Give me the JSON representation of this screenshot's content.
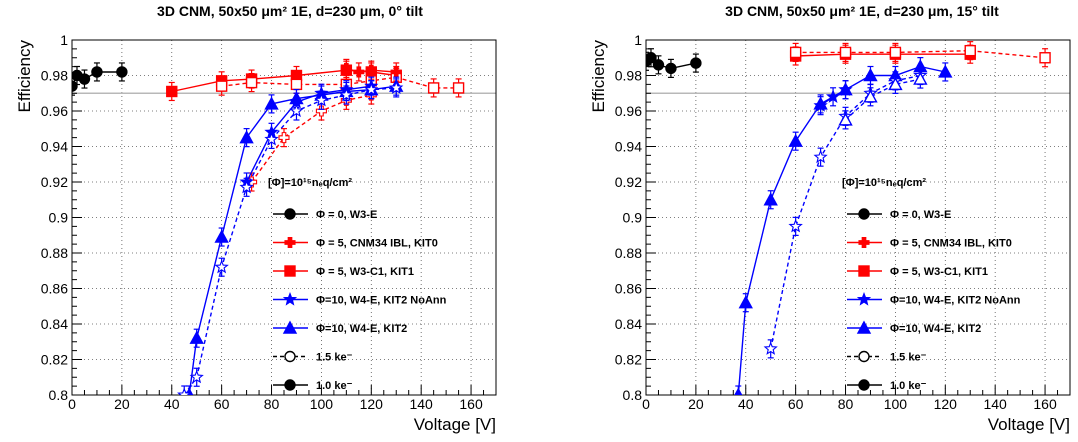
{
  "chart_data": [
    {
      "type": "line",
      "title": "3D CNM, 50x50 μm² 1E, d=230 μm, 0° tilt",
      "xlabel": "Voltage [V]",
      "ylabel": "Efficiency",
      "xlim": [
        0,
        170
      ],
      "ylim": [
        0.8,
        1.0
      ],
      "xticks": [
        "0",
        "20",
        "40",
        "60",
        "80",
        "100",
        "120",
        "140",
        "160"
      ],
      "yticks": [
        "0.8",
        "0.82",
        "0.84",
        "0.86",
        "0.88",
        "0.9",
        "0.92",
        "0.94",
        "0.96",
        "0.98",
        "1"
      ],
      "reference_line": 0.97,
      "grid": true,
      "legend_header": "[Φ]=10¹⁵nₑq/cm²",
      "legend": [
        {
          "label": "Φ = 0, W3-E",
          "color": "#000000",
          "marker": "circle"
        },
        {
          "label": "Φ = 5, CNM34 IBL, KIT0",
          "color": "#ff0000",
          "marker": "cross"
        },
        {
          "label": "Φ = 5, W3-C1, KIT1",
          "color": "#ff0000",
          "marker": "square"
        },
        {
          "label": "Φ=10, W4-E,   KIT2 NoAnn",
          "color": "#0000ff",
          "marker": "star"
        },
        {
          "label": "Φ=10, W4-E,   KIT2",
          "color": "#0000ff",
          "marker": "triangle"
        },
        {
          "label": "1.5 ke⁻",
          "color": "#000000",
          "marker": "open-circle",
          "dashed": true
        },
        {
          "label": "1.0 ke⁻",
          "color": "#000000",
          "marker": "circle"
        }
      ],
      "series": [
        {
          "color": "#000000",
          "marker": "circle",
          "dashed": false,
          "x": [
            0,
            2,
            5,
            10,
            20
          ],
          "y": [
            0.974,
            0.98,
            0.978,
            0.982,
            0.982
          ]
        },
        {
          "color": "#ff0000",
          "marker": "square",
          "dashed": false,
          "x": [
            40,
            60,
            72,
            90,
            110,
            120,
            130
          ],
          "y": [
            0.971,
            0.977,
            0.978,
            0.98,
            0.983,
            0.982,
            0.98
          ]
        },
        {
          "color": "#ff0000",
          "marker": "open-square",
          "dashed": true,
          "x": [
            60,
            72,
            90,
            110,
            120,
            130,
            145,
            155
          ],
          "y": [
            0.974,
            0.976,
            0.975,
            0.975,
            0.977,
            0.979,
            0.973,
            0.973
          ]
        },
        {
          "color": "#ff0000",
          "marker": "cross",
          "dashed": false,
          "x": [
            110,
            115,
            120,
            130
          ],
          "y": [
            0.984,
            0.982,
            0.983,
            0.982
          ]
        },
        {
          "color": "#ff0000",
          "marker": "open-cross",
          "dashed": true,
          "x": [
            72,
            85,
            100,
            110,
            120
          ],
          "y": [
            0.92,
            0.945,
            0.96,
            0.966,
            0.969
          ]
        },
        {
          "color": "#0000ff",
          "marker": "triangle",
          "dashed": false,
          "x": [
            47,
            50,
            60,
            70,
            80,
            90,
            100,
            110,
            120,
            130
          ],
          "y": [
            0.8,
            0.832,
            0.889,
            0.945,
            0.964,
            0.967,
            0.969,
            0.971,
            0.972,
            0.974
          ]
        },
        {
          "color": "#0000ff",
          "marker": "star",
          "dashed": false,
          "x": [
            70,
            80,
            90,
            100,
            110,
            120
          ],
          "y": [
            0.92,
            0.948,
            0.965,
            0.97,
            0.972,
            0.974
          ]
        },
        {
          "color": "#0000ff",
          "marker": "open-star",
          "dashed": true,
          "x": [
            45,
            50,
            60,
            70,
            80,
            90,
            100,
            110,
            120,
            130
          ],
          "y": [
            0.8,
            0.81,
            0.872,
            0.917,
            0.944,
            0.96,
            0.966,
            0.969,
            0.972,
            0.973
          ]
        }
      ]
    },
    {
      "type": "line",
      "title": "3D CNM, 50x50 μm² 1E, d=230 μm, 15° tilt",
      "xlabel": "Voltage [V]",
      "ylabel": "Efficiency",
      "xlim": [
        0,
        170
      ],
      "ylim": [
        0.8,
        1.0
      ],
      "xticks": [
        "0",
        "20",
        "40",
        "60",
        "80",
        "100",
        "120",
        "140",
        "160"
      ],
      "yticks": [
        "0.8",
        "0.82",
        "0.84",
        "0.86",
        "0.88",
        "0.9",
        "0.92",
        "0.94",
        "0.96",
        "0.98",
        "1"
      ],
      "reference_line": 0.97,
      "grid": true,
      "legend_header": "[Φ]=10¹⁵nₑq/cm²",
      "legend": [
        {
          "label": "Φ = 0, W3-E",
          "color": "#000000",
          "marker": "circle"
        },
        {
          "label": "Φ = 5, CNM34 IBL, KIT0",
          "color": "#ff0000",
          "marker": "cross"
        },
        {
          "label": "Φ = 5, W3-C1, KIT1",
          "color": "#ff0000",
          "marker": "square"
        },
        {
          "label": "Φ=10, W4-E,   KIT2 NoAnn",
          "color": "#0000ff",
          "marker": "star"
        },
        {
          "label": "Φ=10, W4-E,   KIT2",
          "color": "#0000ff",
          "marker": "triangle"
        },
        {
          "label": "1.5 ke⁻",
          "color": "#000000",
          "marker": "open-circle",
          "dashed": true
        },
        {
          "label": "1.0 ke⁻",
          "color": "#000000",
          "marker": "circle"
        }
      ],
      "series": [
        {
          "color": "#000000",
          "marker": "circle",
          "dashed": false,
          "x": [
            0,
            2,
            5,
            10,
            20
          ],
          "y": [
            0.988,
            0.99,
            0.986,
            0.984,
            0.987
          ]
        },
        {
          "color": "#ff0000",
          "marker": "square",
          "dashed": false,
          "x": [
            60,
            80,
            100,
            130
          ],
          "y": [
            0.991,
            0.992,
            0.992,
            0.992
          ]
        },
        {
          "color": "#ff0000",
          "marker": "open-square",
          "dashed": true,
          "x": [
            60,
            80,
            100,
            130,
            160
          ],
          "y": [
            0.993,
            0.993,
            0.993,
            0.994,
            0.99
          ]
        },
        {
          "color": "#0000ff",
          "marker": "triangle",
          "dashed": false,
          "x": [
            37,
            40,
            50,
            60,
            70,
            80,
            90,
            100,
            110,
            120
          ],
          "y": [
            0.8,
            0.852,
            0.91,
            0.943,
            0.964,
            0.972,
            0.98,
            0.98,
            0.985,
            0.982
          ]
        },
        {
          "color": "#0000ff",
          "marker": "star",
          "dashed": false,
          "x": [
            70,
            75,
            80
          ],
          "y": [
            0.963,
            0.968,
            0.972
          ]
        },
        {
          "color": "#0000ff",
          "marker": "open-star",
          "dashed": true,
          "x": [
            50,
            60,
            70,
            80,
            90,
            100,
            110
          ],
          "y": [
            0.826,
            0.895,
            0.934,
            0.957,
            0.97,
            0.977,
            0.98
          ]
        },
        {
          "color": "#0000ff",
          "marker": "open-triangle",
          "dashed": true,
          "x": [
            80,
            90,
            100,
            110
          ],
          "y": [
            0.955,
            0.968,
            0.975,
            0.978
          ]
        }
      ]
    }
  ]
}
